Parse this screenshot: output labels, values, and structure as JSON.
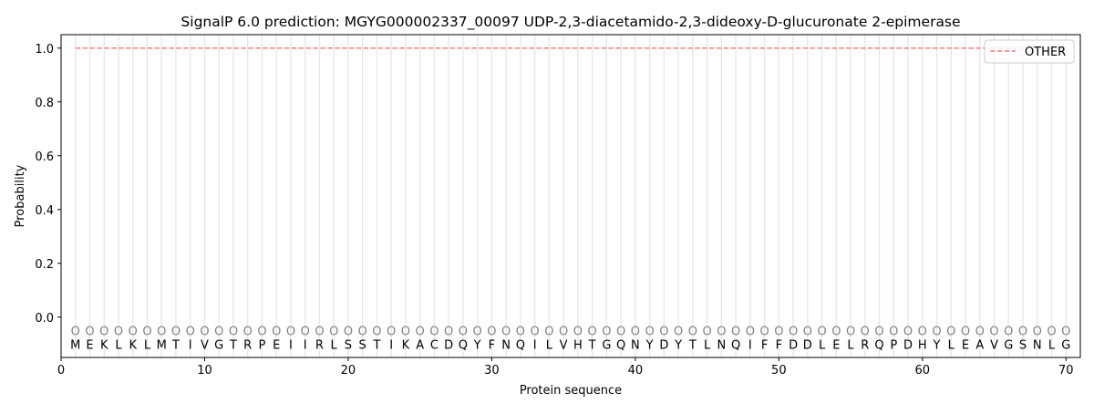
{
  "chart_data": {
    "type": "line",
    "title": "SignalP 6.0 prediction: MGYG000002337_00097 UDP-2,3-diacetamido-2,3-dideoxy-D-glucuronate 2-epimerase",
    "xlabel": "Protein sequence",
    "ylabel": "Probability",
    "xlim": [
      0,
      71
    ],
    "ylim": [
      -0.15,
      1.05
    ],
    "xticks": [
      0,
      10,
      20,
      30,
      40,
      50,
      60,
      70
    ],
    "yticks": [
      0.0,
      0.2,
      0.4,
      0.6,
      0.8,
      1.0
    ],
    "ytick_labels": [
      "0.0",
      "0.2",
      "0.4",
      "0.6",
      "0.8",
      "1.0"
    ],
    "sequence": [
      "M",
      "E",
      "K",
      "L",
      "K",
      "L",
      "M",
      "T",
      "I",
      "V",
      "G",
      "T",
      "R",
      "P",
      "E",
      "I",
      "I",
      "R",
      "L",
      "S",
      "S",
      "T",
      "I",
      "K",
      "A",
      "C",
      "D",
      "Q",
      "Y",
      "F",
      "N",
      "Q",
      "I",
      "L",
      "V",
      "H",
      "T",
      "G",
      "Q",
      "N",
      "Y",
      "D",
      "Y",
      "T",
      "L",
      "N",
      "Q",
      "I",
      "F",
      "F",
      "D",
      "D",
      "L",
      "E",
      "L",
      "R",
      "Q",
      "P",
      "D",
      "H",
      "Y",
      "L",
      "E",
      "A",
      "V",
      "G",
      "S",
      "N",
      "L",
      "G"
    ],
    "predicted_labels": "OOOOOOOOOOOOOOOOOOOOOOOOOOOOOOOOOOOOOOOOOOOOOOOOOOOOOOOOOOOOOOOOOOOOOO",
    "series": [
      {
        "name": "OTHER",
        "color": "#f08080",
        "style": "dashed",
        "x_range": [
          1,
          70
        ],
        "value": 1.0
      }
    ],
    "legend_position": "top-right",
    "grid": "vertical lines at each residue"
  }
}
